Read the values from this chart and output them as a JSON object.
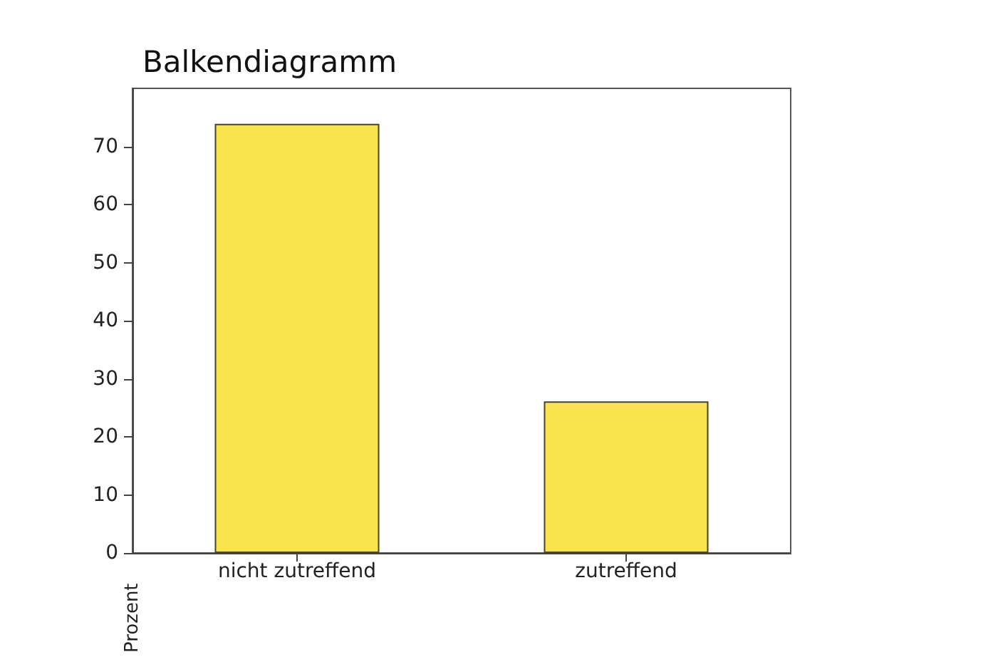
{
  "chart_data": {
    "type": "bar",
    "title": "Balkendiagramm",
    "ylabel": "Prozent",
    "categories": [
      "nicht zutreffend",
      "zutreffend"
    ],
    "values": [
      73.9,
      26.1
    ],
    "color": "#f9e44f",
    "ylim": [
      0,
      80
    ],
    "yticks": [
      0,
      10,
      20,
      30,
      40,
      50,
      60,
      70
    ],
    "grid": false
  }
}
